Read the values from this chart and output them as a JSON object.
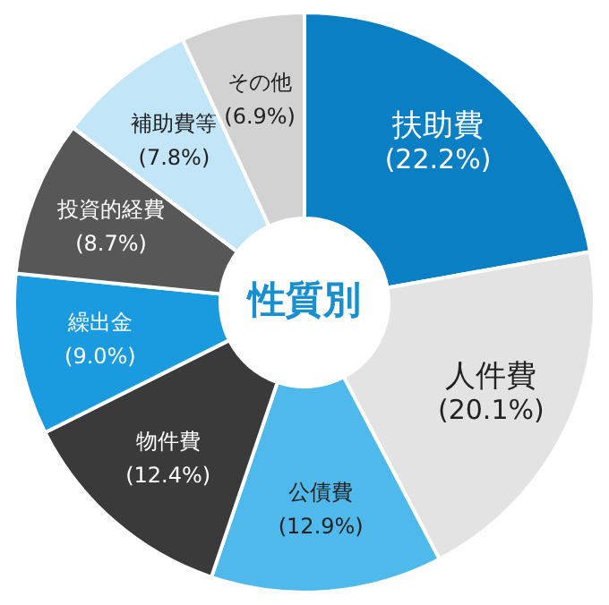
{
  "chart_data": {
    "type": "donut",
    "title": "性質別",
    "categories": [
      "扶助費",
      "人件費",
      "公債費",
      "物件費",
      "繰出金",
      "投資的経費",
      "補助費等",
      "その他"
    ],
    "values": [
      22.2,
      20.1,
      12.9,
      12.4,
      9.0,
      8.7,
      7.8,
      6.9
    ],
    "value_labels": [
      "(22.2%)",
      "(20.1%)",
      "(12.9%)",
      "(12.4%)",
      "(9.0%)",
      "(8.7%)",
      "(7.8%)",
      "(6.9%)"
    ],
    "colors": [
      "#0b7fc4",
      "#e3e3e3",
      "#4fb9ec",
      "#3b3a3a",
      "#1a9be0",
      "#585757",
      "#c3e5f8",
      "#d2d2d2"
    ],
    "legend": false
  }
}
